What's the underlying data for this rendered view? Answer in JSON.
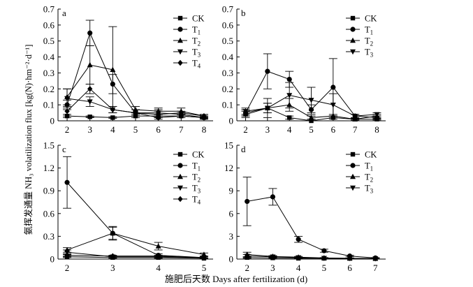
{
  "y_label": "氨挥发通量 NH₃ volatilization flux [kg(N)·hm⁻²·d⁻¹]",
  "x_label": "施肥后天数 Days after fertilization (d)",
  "chart_data": [
    {
      "type": "line",
      "panel_label": "a",
      "x": [
        2,
        3,
        4,
        5,
        6,
        7,
        8
      ],
      "xlim": [
        1.6,
        8.4
      ],
      "ylim": [
        0,
        0.7
      ],
      "yticks": [
        0,
        0.1,
        0.2,
        0.3,
        0.4,
        0.5,
        0.6,
        0.7
      ],
      "ytick_labels": [
        "0",
        "0.1",
        "0.2",
        "0.3",
        "0.4",
        "0.5",
        "0.6",
        "0.7"
      ],
      "legend_position": "top-right",
      "series": [
        {
          "name": "CK",
          "sub": "",
          "marker": "square",
          "values": [
            0.03,
            0.025,
            0.02,
            0.03,
            0.03,
            0.03,
            0.02
          ],
          "errors": [
            0.01,
            0.005,
            0.005,
            0.01,
            0.01,
            0.01,
            0.005
          ]
        },
        {
          "name": "T",
          "sub": "1",
          "marker": "circle",
          "values": [
            0.1,
            0.55,
            0.23,
            0.05,
            0.02,
            0.03,
            0.02
          ],
          "errors": [
            0.03,
            0.08,
            0.06,
            0.02,
            0.01,
            0.01,
            0.01
          ]
        },
        {
          "name": "T",
          "sub": "2",
          "marker": "triangle-up",
          "values": [
            0.15,
            0.35,
            0.32,
            0.07,
            0.06,
            0.06,
            0.03
          ],
          "errors": [
            0.05,
            0.12,
            0.27,
            0.02,
            0.02,
            0.02,
            0.01
          ]
        },
        {
          "name": "T",
          "sub": "3",
          "marker": "triangle-down",
          "values": [
            0.14,
            0.12,
            0.07,
            0.05,
            0.05,
            0.04,
            0.02
          ],
          "errors": [
            0.06,
            0.03,
            0.02,
            0.02,
            0.02,
            0.01,
            0.01
          ]
        },
        {
          "name": "T",
          "sub": "4",
          "marker": "diamond",
          "values": [
            0.06,
            0.2,
            0.07,
            0.05,
            0.04,
            0.05,
            0.03
          ],
          "errors": [
            0.03,
            0.03,
            0.02,
            0.02,
            0.02,
            0.01,
            0.01
          ]
        }
      ]
    },
    {
      "type": "line",
      "panel_label": "b",
      "x": [
        2,
        3,
        4,
        5,
        6,
        7,
        8
      ],
      "xlim": [
        1.6,
        8.4
      ],
      "ylim": [
        0,
        0.7
      ],
      "yticks": [
        0,
        0.1,
        0.2,
        0.3,
        0.4,
        0.5,
        0.6,
        0.7
      ],
      "ytick_labels": [
        "0",
        "0.1",
        "0.2",
        "0.3",
        "0.4",
        "0.5",
        "0.6",
        "0.7"
      ],
      "legend_position": "top-right",
      "series": [
        {
          "name": "CK",
          "sub": "",
          "marker": "square",
          "values": [
            0.04,
            0.08,
            0.02,
            0.0,
            0.02,
            0.01,
            0.01
          ],
          "errors": [
            0.02,
            0.03,
            0.01,
            0.01,
            0.01,
            0.005,
            0.005
          ]
        },
        {
          "name": "T",
          "sub": "1",
          "marker": "circle",
          "values": [
            0.05,
            0.31,
            0.26,
            0.07,
            0.21,
            0.03,
            0.02
          ],
          "errors": [
            0.02,
            0.11,
            0.05,
            0.03,
            0.18,
            0.01,
            0.01
          ]
        },
        {
          "name": "T",
          "sub": "2",
          "marker": "triangle-up",
          "values": [
            0.05,
            0.08,
            0.1,
            0.02,
            0.03,
            0.01,
            0.03
          ],
          "errors": [
            0.02,
            0.03,
            0.04,
            0.01,
            0.01,
            0.005,
            0.01
          ]
        },
        {
          "name": "T",
          "sub": "3",
          "marker": "triangle-down",
          "values": [
            0.06,
            0.08,
            0.16,
            0.13,
            0.1,
            0.03,
            0.04
          ],
          "errors": [
            0.02,
            0.06,
            0.08,
            0.08,
            0.07,
            0.01,
            0.01
          ]
        }
      ]
    },
    {
      "type": "line",
      "panel_label": "c",
      "x": [
        2,
        3,
        4,
        5
      ],
      "xlim": [
        1.8,
        5.2
      ],
      "ylim": [
        0,
        1.5
      ],
      "yticks": [
        0,
        0.3,
        0.6,
        0.9,
        1.2,
        1.5
      ],
      "ytick_labels": [
        "0",
        "0.3",
        "0.6",
        "0.9",
        "1.2",
        "1.5"
      ],
      "legend_position": "top-right",
      "series": [
        {
          "name": "CK",
          "sub": "",
          "marker": "square",
          "values": [
            0.03,
            0.02,
            0.02,
            0.01
          ],
          "errors": [
            0.01,
            0.01,
            0.01,
            0.005
          ]
        },
        {
          "name": "T",
          "sub": "1",
          "marker": "circle",
          "values": [
            1.01,
            0.34,
            0.05,
            0.02
          ],
          "errors": [
            0.34,
            0.09,
            0.02,
            0.01
          ]
        },
        {
          "name": "T",
          "sub": "2",
          "marker": "triangle-up",
          "values": [
            0.12,
            0.34,
            0.17,
            0.06
          ],
          "errors": [
            0.03,
            0.08,
            0.05,
            0.02
          ]
        },
        {
          "name": "T",
          "sub": "3",
          "marker": "triangle-down",
          "values": [
            0.09,
            0.03,
            0.03,
            0.02
          ],
          "errors": [
            0.03,
            0.01,
            0.01,
            0.01
          ]
        },
        {
          "name": "T",
          "sub": "4",
          "marker": "diamond",
          "values": [
            0.05,
            0.04,
            0.04,
            0.02
          ],
          "errors": [
            0.02,
            0.01,
            0.01,
            0.01
          ]
        }
      ]
    },
    {
      "type": "line",
      "panel_label": "d",
      "x": [
        2,
        3,
        4,
        5,
        6,
        7
      ],
      "xlim": [
        1.6,
        7.4
      ],
      "ylim": [
        0,
        15
      ],
      "yticks": [
        0,
        3,
        6,
        9,
        12,
        15
      ],
      "ytick_labels": [
        "0",
        "3",
        "6",
        "9",
        "12",
        "15"
      ],
      "legend_position": "top-right",
      "series": [
        {
          "name": "CK",
          "sub": "",
          "marker": "square",
          "values": [
            0.2,
            0.15,
            0.1,
            0.1,
            0.08,
            0.05
          ],
          "errors": [
            0.1,
            0.05,
            0.05,
            0.05,
            0.03,
            0.02
          ]
        },
        {
          "name": "T",
          "sub": "1",
          "marker": "circle",
          "values": [
            7.6,
            8.2,
            2.6,
            1.1,
            0.4,
            0.15
          ],
          "errors": [
            3.2,
            1.1,
            0.4,
            0.2,
            0.1,
            0.05
          ]
        },
        {
          "name": "T",
          "sub": "2",
          "marker": "triangle-up",
          "values": [
            0.6,
            0.35,
            0.25,
            0.15,
            0.1,
            0.08
          ],
          "errors": [
            0.3,
            0.1,
            0.1,
            0.05,
            0.03,
            0.02
          ]
        },
        {
          "name": "T",
          "sub": "3",
          "marker": "triangle-down",
          "values": [
            0.4,
            0.3,
            0.2,
            0.12,
            0.1,
            0.06
          ],
          "errors": [
            0.2,
            0.1,
            0.05,
            0.05,
            0.03,
            0.02
          ]
        }
      ]
    }
  ]
}
